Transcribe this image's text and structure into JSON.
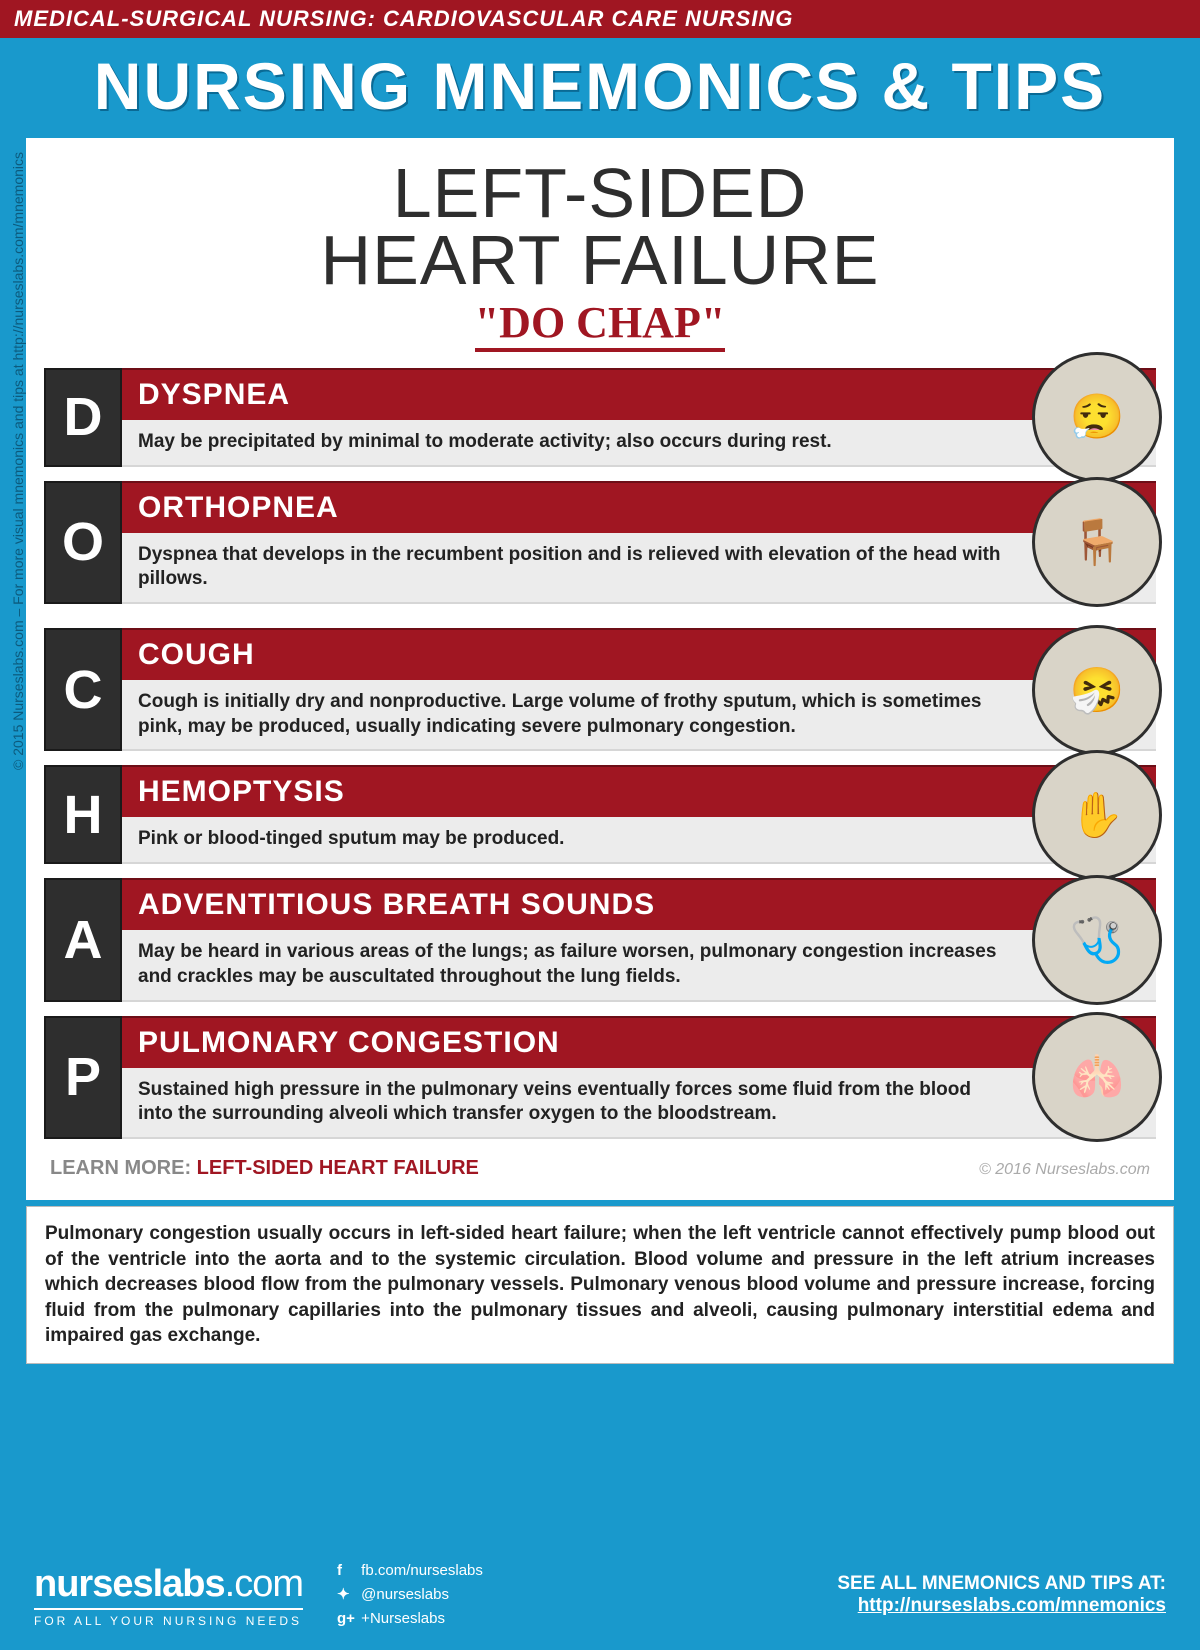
{
  "colors": {
    "page_bg": "#1999cc",
    "banner_bg": "#a01622",
    "dark": "#2e2e2e",
    "desc_bg": "#ececec"
  },
  "top_banner": "MEDICAL-SURGICAL NURSING: CARDIOVASCULAR CARE NURSING",
  "main_title": "NURSING MNEMONICS & TIPS",
  "card_title_line1": "LEFT-SIDED",
  "card_title_line2": "HEART FAILURE",
  "mnemonic": "\"DO CHAP\"",
  "rows": [
    {
      "letter": "D",
      "term": "DYSPNEA",
      "desc": "May be precipitated by minimal to moderate activity; also occurs during rest.",
      "glyph": "😮‍💨",
      "gap_after": false
    },
    {
      "letter": "O",
      "term": "ORTHOPNEA",
      "desc": "Dyspnea that develops in the recumbent position and is relieved with elevation of the head with pillows.",
      "glyph": "🪑",
      "gap_after": true
    },
    {
      "letter": "C",
      "term": "COUGH",
      "desc": "Cough is initially dry and nonproductive. Large volume of frothy sputum, which is sometimes pink, may be produced, usually indicating severe pulmonary congestion.",
      "glyph": "🤧",
      "gap_after": false
    },
    {
      "letter": "H",
      "term": "HEMOPTYSIS",
      "desc": "Pink or blood-tinged sputum may be produced.",
      "glyph": "✋",
      "gap_after": false
    },
    {
      "letter": "A",
      "term": "ADVENTITIOUS BREATH SOUNDS",
      "desc": "May be heard in various areas of the lungs; as failure worsen, pulmonary congestion increases and crackles may be auscultated throughout the lung fields.",
      "glyph": "🩺",
      "gap_after": false
    },
    {
      "letter": "P",
      "term": "PULMONARY CONGESTION",
      "desc": "Sustained high pressure in the pulmonary veins eventually forces some fluid from the blood into the surrounding alveoli which transfer oxygen to the bloodstream.",
      "glyph": "🫁",
      "gap_after": false
    }
  ],
  "learn_more_prefix": "LEARN MORE: ",
  "learn_more_topic": "LEFT-SIDED HEART FAILURE",
  "copyright_year": "© 2016 Nurseslabs.com",
  "explain": "Pulmonary congestion usually occurs in left-sided heart failure; when the left ventricle cannot effectively pump blood out of the ventricle into the aorta and to the systemic circulation. Blood volume and pressure in the left atrium increases which decreases blood flow from the pulmonary vessels. Pulmonary venous blood volume and pressure increase, forcing fluid from the pulmonary capillaries into the pulmonary tissues and alveoli, causing pulmonary interstitial edema and impaired gas exchange.",
  "footer": {
    "logo_main": "nurseslabs",
    "logo_suffix": ".com",
    "logo_sub": "FOR ALL YOUR NURSING NEEDS",
    "socials": [
      {
        "icon": "f",
        "text": "fb.com/nurseslabs"
      },
      {
        "icon": "✦",
        "text": "@nurseslabs"
      },
      {
        "icon": "g+",
        "text": "+Nurseslabs"
      }
    ],
    "see_all_label": "SEE ALL MNEMONICS AND TIPS AT:",
    "see_all_link": "http://nurseslabs.com/mnemonics"
  },
  "side_copyright": "© 2015 Nurseslabs.com – For more visual mnemonics and tips at http://nurseslabs.com/mnemonics"
}
